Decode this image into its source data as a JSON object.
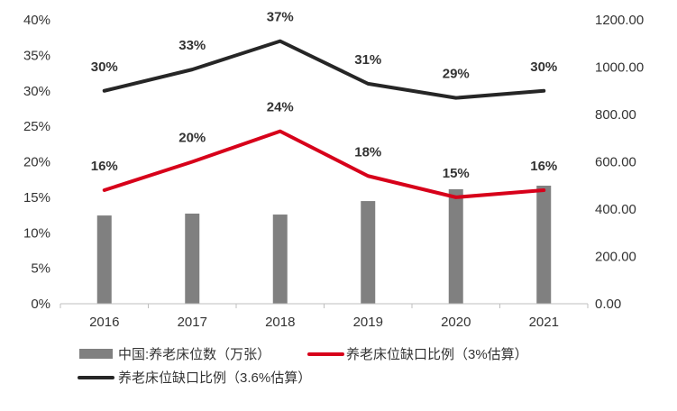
{
  "chart_data": {
    "type": "bar+line",
    "categories": [
      "2016",
      "2017",
      "2018",
      "2019",
      "2020",
      "2021"
    ],
    "left_axis": {
      "ylim": [
        0,
        40
      ],
      "ticks": [
        "0%",
        "5%",
        "10%",
        "15%",
        "20%",
        "25%",
        "30%",
        "35%",
        "40%"
      ]
    },
    "right_axis": {
      "ylim": [
        0,
        1200
      ],
      "ticks": [
        "0.00",
        "200.00",
        "400.00",
        "600.00",
        "800.00",
        "1000.00",
        "1200.00"
      ]
    },
    "series": [
      {
        "name": "中国:养老床位数（万张）",
        "type": "bar",
        "axis": "right",
        "color": "#808080",
        "values": [
          373,
          381,
          377,
          434,
          484,
          499
        ]
      },
      {
        "name": "养老床位缺口比例（3%估算）",
        "type": "line",
        "axis": "left",
        "color": "#d7001a",
        "values": [
          16,
          20,
          24.3,
          18,
          15,
          16
        ],
        "labels": [
          "16%",
          "20%",
          "24%",
          "18%",
          "15%",
          "16%"
        ]
      },
      {
        "name": "养老床位缺口比例（3.6%估算）",
        "type": "line",
        "axis": "left",
        "color": "#262626",
        "values": [
          30,
          33,
          37,
          31,
          29,
          30
        ],
        "labels": [
          "30%",
          "33%",
          "37%",
          "31%",
          "29%",
          "30%"
        ]
      }
    ],
    "legend_position": "bottom",
    "grid": false
  }
}
